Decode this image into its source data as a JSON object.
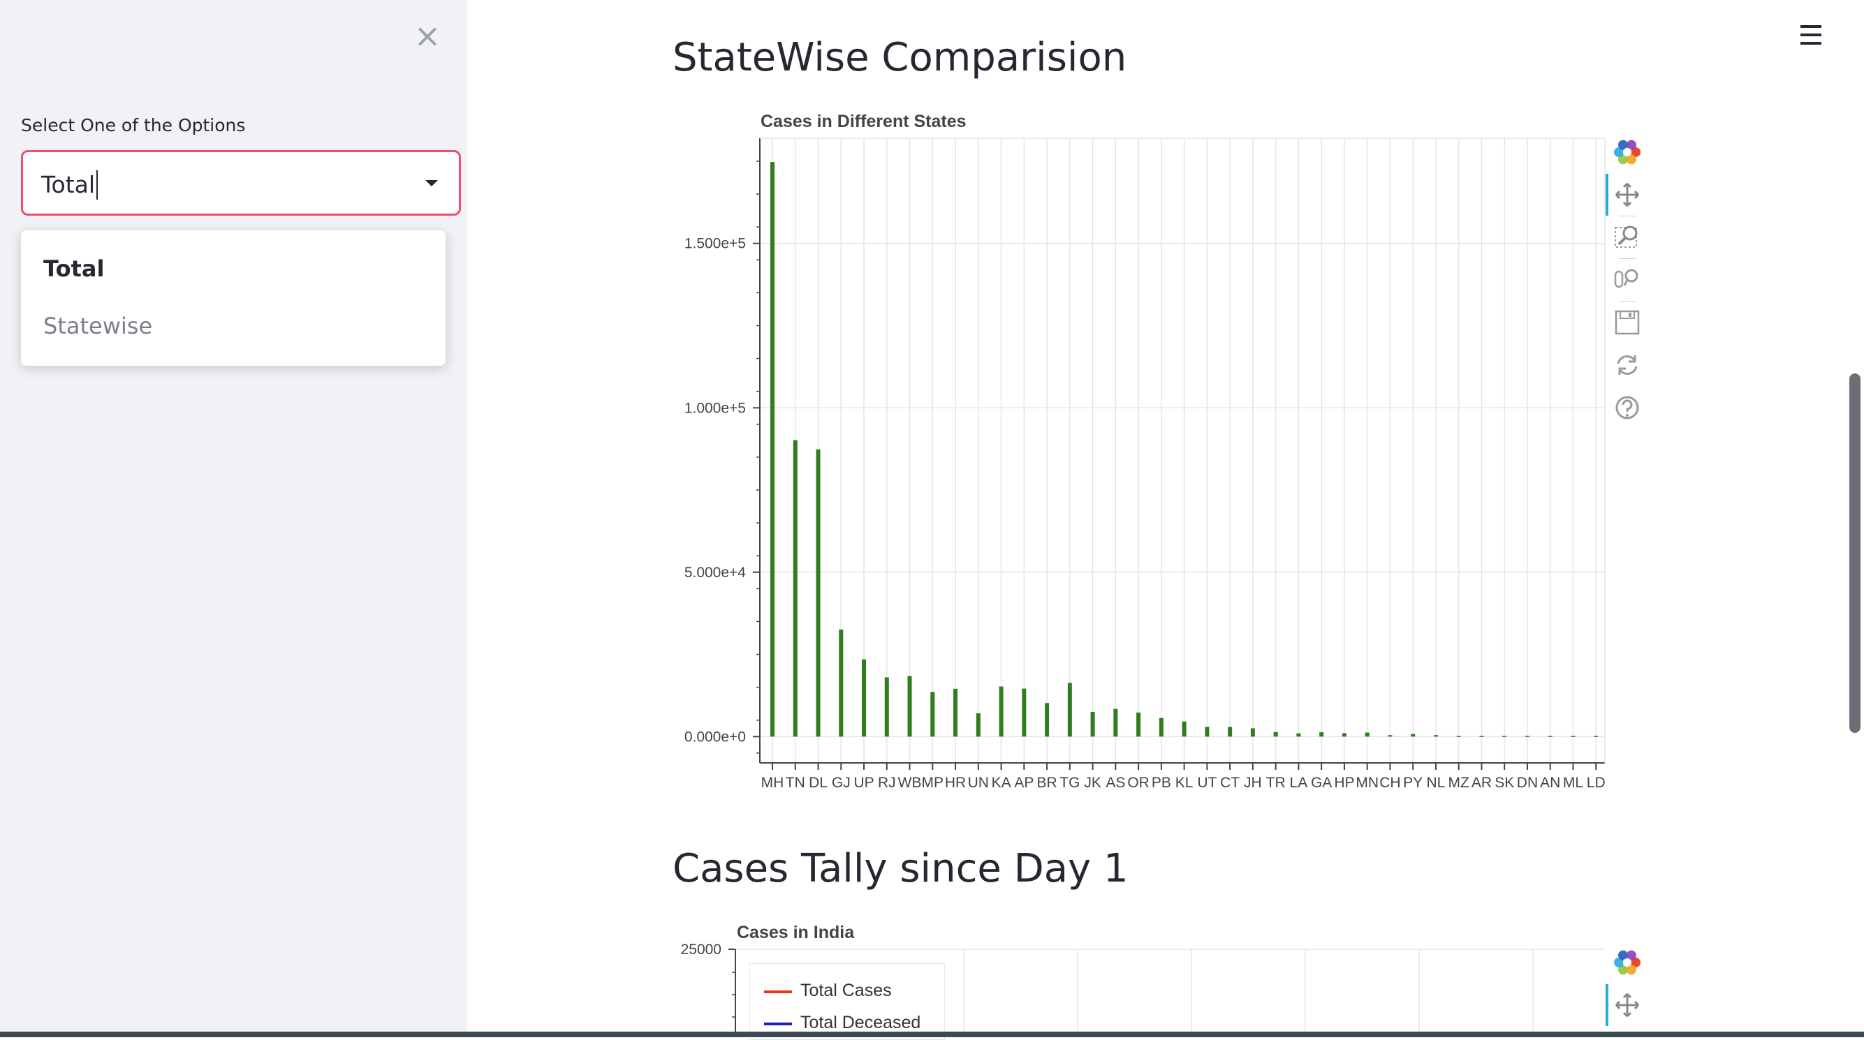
{
  "sidebar": {
    "close_icon": "close-icon",
    "select_label": "Select One of the Options",
    "select_value": "Total",
    "options": [
      "Total",
      "Statewise"
    ]
  },
  "main": {
    "menu_icon": "hamburger-menu-icon",
    "heading1": "StateWise Comparision",
    "heading2": "Cases Tally since Day 1"
  },
  "chart_data": [
    {
      "type": "bar",
      "title": "Cases in Different States",
      "xlabel": "",
      "ylabel": "",
      "categories": [
        "MH",
        "TN",
        "DL",
        "GJ",
        "UP",
        "RJ",
        "WB",
        "MP",
        "HR",
        "UN",
        "KA",
        "AP",
        "BR",
        "TG",
        "JK",
        "AS",
        "OR",
        "PB",
        "KL",
        "UT",
        "CT",
        "JH",
        "TR",
        "LA",
        "GA",
        "HP",
        "MN",
        "CH",
        "PY",
        "NL",
        "MZ",
        "AR",
        "SK",
        "DN",
        "AN",
        "ML",
        "LD"
      ],
      "values": [
        174761,
        90167,
        87360,
        32557,
        23492,
        18014,
        18411,
        13593,
        14548,
        7100,
        15242,
        14595,
        10204,
        16339,
        7497,
        8407,
        7316,
        5668,
        4594,
        2947,
        2940,
        2521,
        1396,
        990,
        1315,
        1039,
        1227,
        446,
        802,
        459,
        148,
        187,
        88,
        215,
        97,
        62,
        0
      ],
      "yticks": [
        "0.000e+0",
        "5.000e+4",
        "1.000e+5",
        "1.500e+5"
      ],
      "ylim": [
        -8000,
        182000
      ],
      "grid": true,
      "color": "#2f7d1f"
    },
    {
      "type": "line",
      "title": "Cases in India",
      "yticks": [
        "25000"
      ],
      "series": [
        {
          "name": "Total Cases",
          "color": "#e8341c",
          "values": []
        },
        {
          "name": "Total Deceased",
          "color": "#1f1fbf",
          "values": []
        }
      ],
      "legend": "top-left"
    }
  ],
  "toolbar": {
    "icons": [
      "bokeh-logo-icon",
      "pan-icon",
      "box-zoom-icon",
      "wheel-zoom-icon",
      "save-icon",
      "reset-icon",
      "help-icon"
    ]
  },
  "colors": {
    "accent": "#f14d6c",
    "sidebar_bg": "#f0f2f6",
    "bar": "#2f7d1f",
    "active_tool": "#26aae1"
  }
}
